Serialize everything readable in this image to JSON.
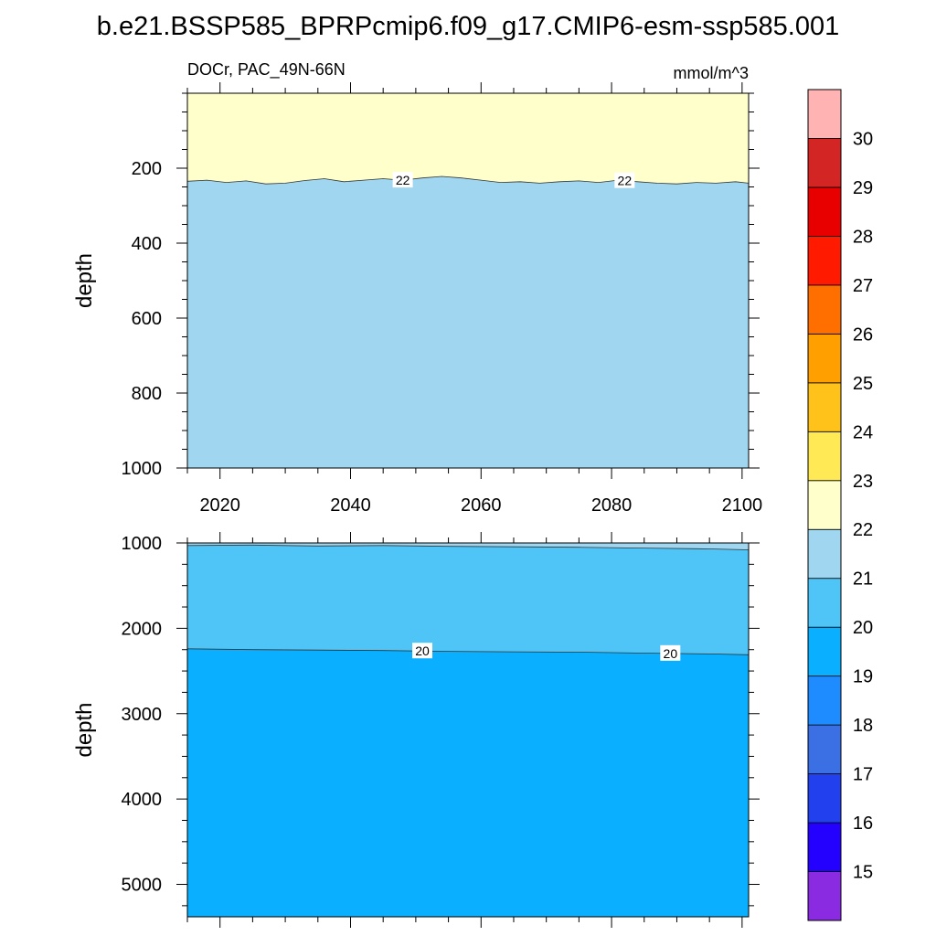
{
  "title": "b.e21.BSSP585_BPRPcmip6.f09_g17.CMIP6-esm-ssp585.001",
  "chart_data": {
    "type": "heatmap",
    "variable_label": "DOCr, PAC_49N-66N",
    "units_label": "mmol/m^3",
    "xlim": [
      2015,
      2101
    ],
    "x_ticks": [
      2020,
      2040,
      2060,
      2080,
      2100
    ],
    "x_tick_labels": [
      "2020",
      "2040",
      "2060",
      "2080",
      "2100"
    ],
    "panels": [
      {
        "name": "upper",
        "ylabel": "depth",
        "ylim": [
          0,
          1000
        ],
        "y_ticks": [
          200,
          400,
          600,
          800,
          1000
        ],
        "y_tick_labels": [
          "200",
          "400",
          "600",
          "800",
          "1000"
        ],
        "bands": [
          {
            "range": [
              22,
              23
            ],
            "color": "#ffffcc"
          },
          {
            "range": [
              21,
              22
            ],
            "color": "#a0d6f0"
          }
        ],
        "contours": [
          {
            "level": 22,
            "label": "22",
            "years": [
              2015,
              2018,
              2021,
              2024,
              2027,
              2030,
              2033,
              2036,
              2039,
              2042,
              2045,
              2048,
              2051,
              2054,
              2057,
              2060,
              2063,
              2066,
              2069,
              2072,
              2075,
              2078,
              2081,
              2084,
              2087,
              2090,
              2093,
              2096,
              2099,
              2101
            ],
            "depths": [
              235,
              232,
              238,
              234,
              242,
              240,
              233,
              228,
              236,
              232,
              228,
              232,
              226,
              222,
              226,
              232,
              238,
              236,
              240,
              236,
              234,
              238,
              232,
              236,
              240,
              242,
              238,
              240,
              236,
              240
            ],
            "label_years": [
              2048,
              2082
            ]
          }
        ]
      },
      {
        "name": "lower",
        "ylabel": "depth",
        "ylim": [
          1000,
          5380
        ],
        "y_ticks": [
          1000,
          2000,
          3000,
          4000,
          5000
        ],
        "y_tick_labels": [
          "1000",
          "2000",
          "3000",
          "4000",
          "5000"
        ],
        "bands": [
          {
            "range": [
              21,
              22
            ],
            "color": "#a0d6f0"
          },
          {
            "range": [
              20,
              21
            ],
            "color": "#4ec4f7"
          },
          {
            "range": [
              19,
              20
            ],
            "color": "#0ab0ff"
          }
        ],
        "contours": [
          {
            "level": 21,
            "label": "",
            "years": [
              2015,
              2025,
              2035,
              2045,
              2055,
              2065,
              2075,
              2085,
              2095,
              2101
            ],
            "depths": [
              1030,
              1025,
              1035,
              1030,
              1040,
              1045,
              1050,
              1060,
              1070,
              1080
            ],
            "label_years": []
          },
          {
            "level": 20,
            "label": "20",
            "years": [
              2015,
              2025,
              2035,
              2045,
              2055,
              2065,
              2075,
              2085,
              2095,
              2101
            ],
            "depths": [
              2240,
              2250,
              2255,
              2260,
              2270,
              2275,
              2280,
              2290,
              2300,
              2310
            ],
            "label_years": [
              2051,
              2089
            ]
          }
        ]
      }
    ],
    "colorbar": {
      "labels": [
        "15",
        "16",
        "17",
        "18",
        "19",
        "20",
        "21",
        "22",
        "23",
        "24",
        "25",
        "26",
        "27",
        "28",
        "29",
        "30"
      ],
      "colors": [
        "#8a2be2",
        "#2400ff",
        "#2240ee",
        "#3a70e4",
        "#1e8cff",
        "#0ab0ff",
        "#4ec4f7",
        "#a0d6f0",
        "#ffffcc",
        "#ffe955",
        "#ffc21a",
        "#ff9f00",
        "#ff6f00",
        "#ff1a00",
        "#e80000",
        "#d42525",
        "#ffb3b3"
      ]
    }
  }
}
